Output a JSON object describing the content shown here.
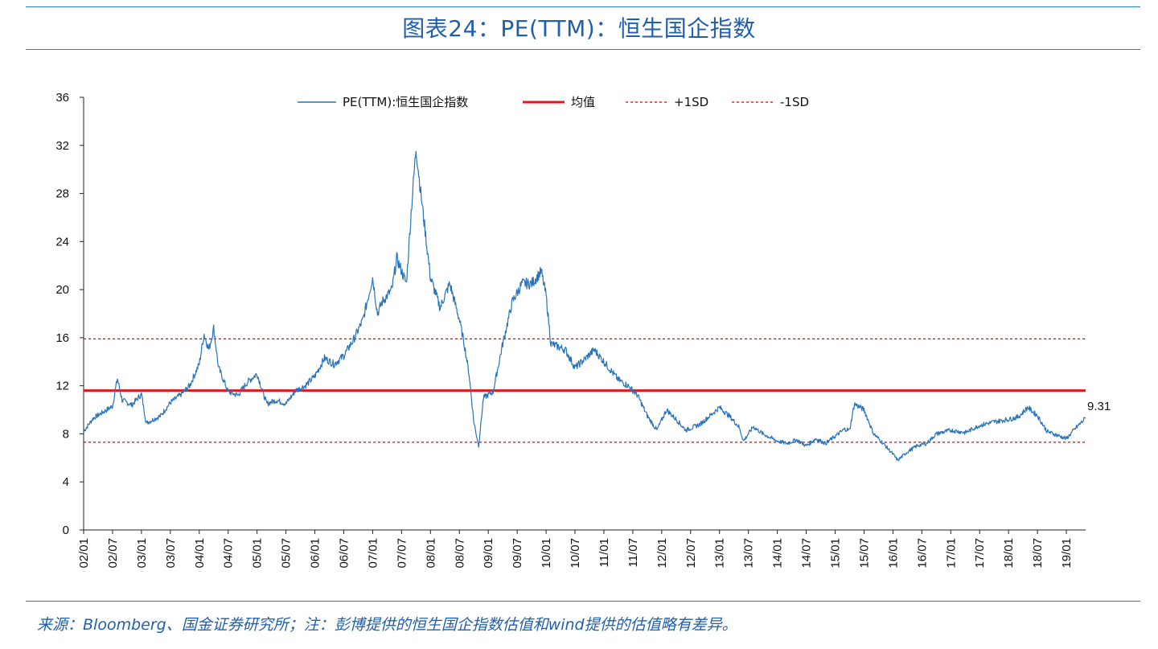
{
  "title": "图表24：PE(TTM)：恒生国企指数",
  "source_note": "来源：Bloomberg、国金证券研究所；注：彭博提供的恒生国企指数估值和wind提供的估值略有差异。",
  "colors": {
    "series": "#2a73b9",
    "mean": "#e8141c",
    "sd": "#b3151b",
    "rule": "#2e7dc5",
    "title": "#1f5fae"
  },
  "chart_data": {
    "type": "line",
    "title": "",
    "xlabel": "",
    "ylabel": "",
    "ylim": [
      0,
      36
    ],
    "yticks": [
      0,
      4,
      8,
      12,
      16,
      20,
      24,
      28,
      32,
      36
    ],
    "xlim": [
      "2002/01",
      "2019/05"
    ],
    "xticks": [
      "02/01",
      "02/07",
      "03/01",
      "03/07",
      "04/01",
      "04/07",
      "05/01",
      "05/07",
      "06/01",
      "06/07",
      "07/01",
      "07/07",
      "08/01",
      "08/07",
      "09/01",
      "09/07",
      "10/01",
      "10/07",
      "11/01",
      "11/07",
      "12/01",
      "12/07",
      "13/01",
      "13/07",
      "14/01",
      "14/07",
      "15/01",
      "15/07",
      "16/01",
      "16/07",
      "17/01",
      "17/07",
      "18/01",
      "18/07",
      "19/01"
    ],
    "legend_position": "top",
    "grid": false,
    "series": [
      {
        "name": "PE(TTM):恒生国企指数",
        "style": "solid",
        "x": [
          "2002/01",
          "2002/03",
          "2002/05",
          "2002/07",
          "2002/08",
          "2002/09",
          "2002/11",
          "2003/01",
          "2003/02",
          "2003/03",
          "2003/05",
          "2003/07",
          "2003/09",
          "2003/11",
          "2004/01",
          "2004/02",
          "2004/03",
          "2004/04",
          "2004/05",
          "2004/07",
          "2004/09",
          "2004/11",
          "2005/01",
          "2005/03",
          "2005/05",
          "2005/07",
          "2005/09",
          "2005/11",
          "2006/01",
          "2006/03",
          "2006/05",
          "2006/07",
          "2006/09",
          "2006/11",
          "2007/01",
          "2007/02",
          "2007/03",
          "2007/05",
          "2007/06",
          "2007/08",
          "2007/09",
          "2007/10",
          "2007/11",
          "2007/12",
          "2008/01",
          "2008/03",
          "2008/05",
          "2008/07",
          "2008/08",
          "2008/09",
          "2008/10",
          "2008/11",
          "2008/12",
          "2009/02",
          "2009/04",
          "2009/06",
          "2009/08",
          "2009/10",
          "2009/12",
          "2010/01",
          "2010/02",
          "2010/05",
          "2010/07",
          "2010/09",
          "2010/11",
          "2011/02",
          "2011/04",
          "2011/06",
          "2011/08",
          "2011/10",
          "2011/12",
          "2012/02",
          "2012/04",
          "2012/06",
          "2012/09",
          "2012/11",
          "2013/01",
          "2013/03",
          "2013/05",
          "2013/06",
          "2013/08",
          "2013/10",
          "2014/01",
          "2014/03",
          "2014/05",
          "2014/07",
          "2014/09",
          "2014/11",
          "2015/01",
          "2015/03",
          "2015/04",
          "2015/05",
          "2015/07",
          "2015/09",
          "2015/11",
          "2016/01",
          "2016/02",
          "2016/04",
          "2016/06",
          "2016/08",
          "2016/10",
          "2017/01",
          "2017/04",
          "2017/07",
          "2017/10",
          "2018/01",
          "2018/03",
          "2018/05",
          "2018/07",
          "2018/09",
          "2018/11",
          "2019/01",
          "2019/03",
          "2019/05"
        ],
        "values": [
          8.2,
          9.3,
          9.8,
          10.3,
          12.6,
          10.8,
          10.4,
          11.3,
          8.9,
          9.1,
          9.5,
          10.6,
          11.2,
          12.0,
          13.8,
          16.3,
          15.0,
          16.8,
          13.5,
          11.5,
          11.2,
          12.3,
          13.0,
          10.5,
          10.8,
          10.5,
          11.6,
          12.0,
          12.8,
          14.3,
          13.8,
          14.5,
          15.8,
          17.5,
          21.0,
          18.0,
          19.0,
          20.0,
          22.6,
          20.5,
          26.5,
          31.8,
          28.0,
          24.5,
          21.0,
          18.5,
          20.5,
          17.5,
          15.5,
          13.0,
          9.0,
          7.0,
          11.0,
          11.5,
          15.5,
          19.0,
          20.5,
          20.5,
          21.5,
          19.5,
          15.5,
          15.0,
          13.5,
          14.2,
          15.0,
          13.5,
          12.5,
          12.0,
          11.2,
          9.5,
          8.3,
          10.0,
          9.2,
          8.3,
          8.8,
          9.5,
          10.2,
          9.5,
          8.6,
          7.4,
          8.6,
          8.0,
          7.4,
          7.2,
          7.5,
          7.0,
          7.6,
          7.2,
          7.8,
          8.4,
          8.3,
          10.5,
          10.0,
          8.0,
          7.2,
          6.3,
          5.8,
          6.5,
          7.0,
          7.2,
          8.0,
          8.3,
          8.1,
          8.7,
          9.0,
          9.2,
          9.4,
          10.2,
          9.5,
          8.2,
          7.9,
          7.6,
          8.5,
          9.31
        ]
      },
      {
        "name": "均值",
        "style": "solid",
        "value": 11.6
      },
      {
        "name": "+1SD",
        "style": "dashed",
        "value": 15.9
      },
      {
        "name": "-1SD",
        "style": "dashed",
        "value": 7.3
      }
    ],
    "annotations": [
      {
        "text": "9.31",
        "x": "2019/05",
        "y": 9.31
      }
    ]
  }
}
